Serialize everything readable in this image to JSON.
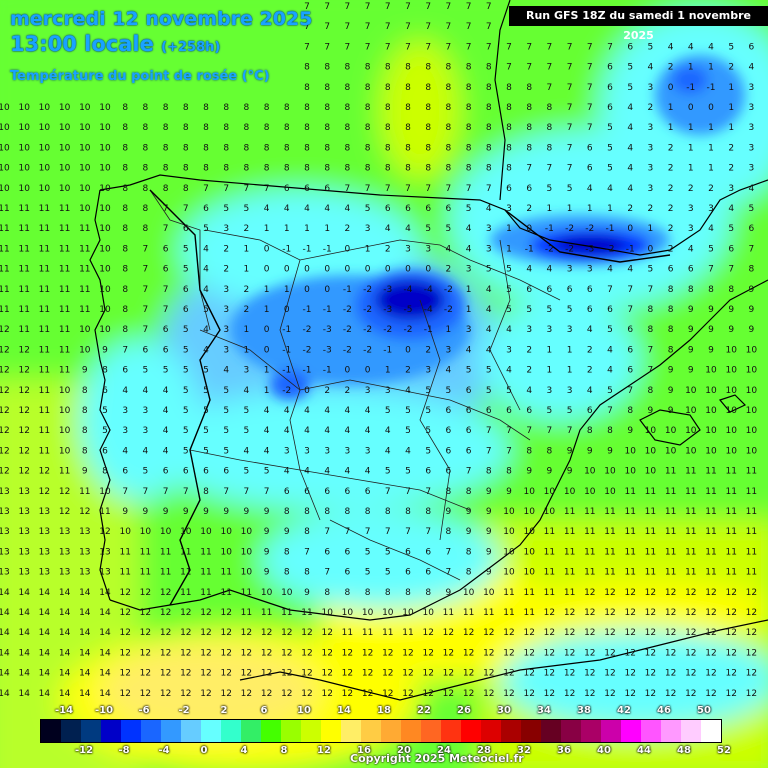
{
  "header": {
    "date": "mercredi 12 novembre 2025",
    "time": "13:00 locale",
    "lead": "(+258h)",
    "parameter": "Température du point de rosée (°C)",
    "run": "Run GFS 18Z du samedi 1 novembre 2025"
  },
  "footer": {
    "copyright": "Copyright 2025 Meteociel.fr"
  },
  "legend": {
    "top_labels": [
      "-14",
      "-10",
      "-6",
      "-2",
      "2",
      "6",
      "10",
      "14",
      "18",
      "22",
      "26",
      "30",
      "34",
      "38",
      "42",
      "46",
      "50"
    ],
    "bottom_labels": [
      "-12",
      "-8",
      "-4",
      "0",
      "4",
      "8",
      "12",
      "16",
      "20",
      "24",
      "28",
      "32",
      "36",
      "40",
      "44",
      "48",
      "52"
    ],
    "colors": [
      "#00001e",
      "#002050",
      "#003a80",
      "#0000c8",
      "#0033ff",
      "#1a66ff",
      "#3399ff",
      "#66ccff",
      "#66ffff",
      "#33ffcc",
      "#33ee66",
      "#44ff00",
      "#99ff00",
      "#ccff00",
      "#ffff00",
      "#ffee66",
      "#ffcc44",
      "#ffaa33",
      "#ff8822",
      "#ff6622",
      "#ff3311",
      "#ff0000",
      "#dd0000",
      "#aa0000",
      "#880000",
      "#660022",
      "#880044",
      "#aa0066",
      "#cc00aa",
      "#ff00ff",
      "#ff55ff",
      "#ff99ff",
      "#ffccff",
      "#ffffff"
    ]
  },
  "map_features": {
    "region": "Iberian Peninsula",
    "layers": [
      "dew-point-shading",
      "country-borders",
      "region-borders",
      "coastline",
      "value-grid"
    ]
  }
}
